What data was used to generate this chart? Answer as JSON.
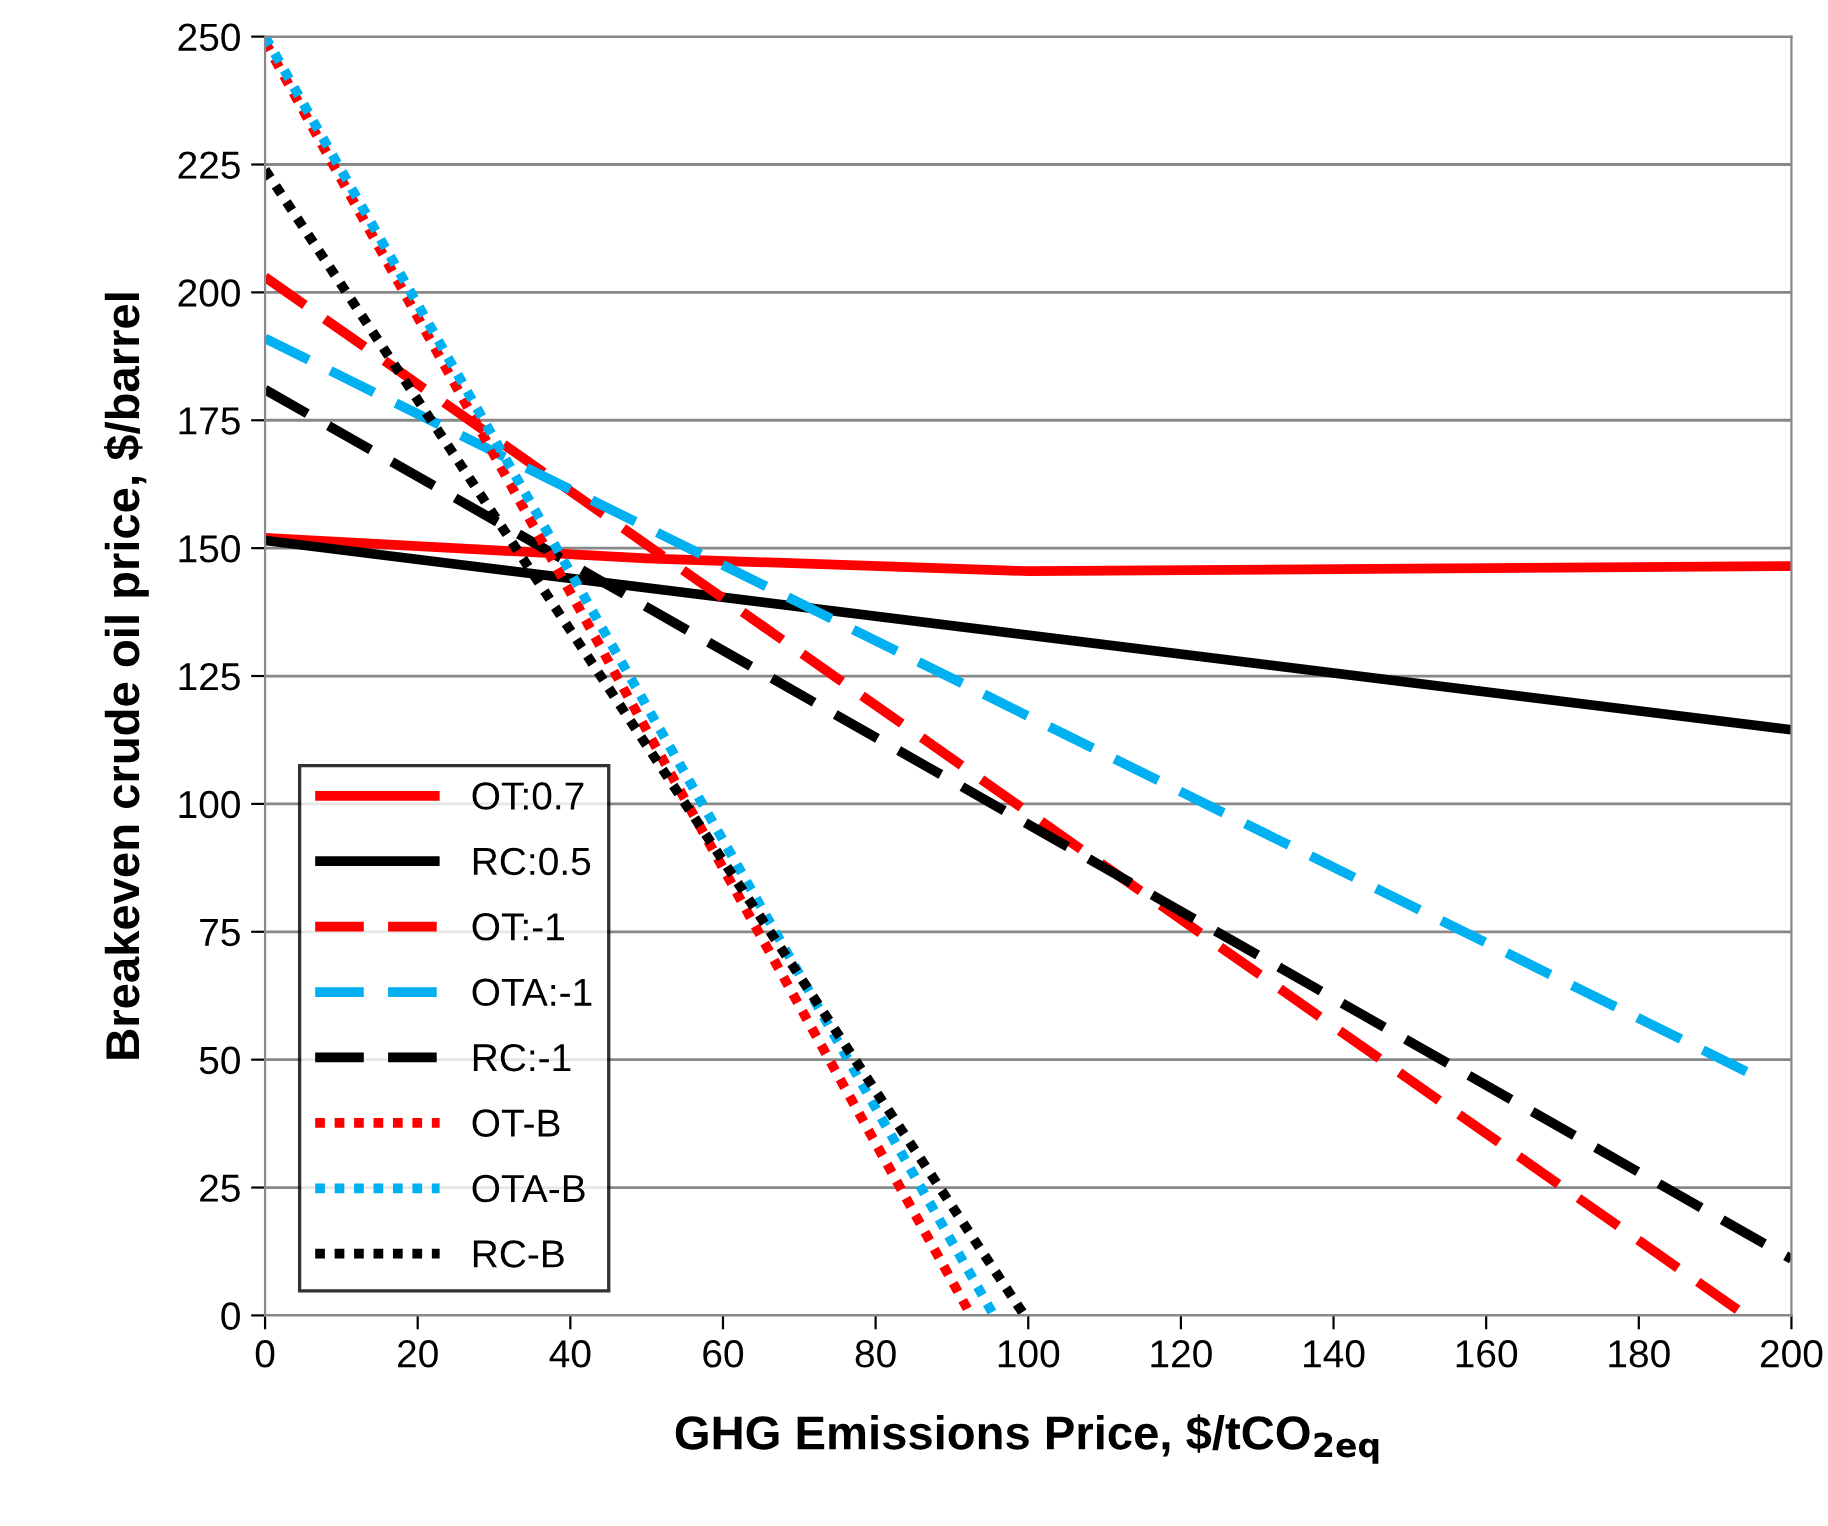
{
  "chart_data": {
    "type": "line",
    "xlabel": "GHG Emissions Price, $/tCO$_{2eq}$",
    "ylabel": "Breakeven crude oil price, $/barrel",
    "xlim": [
      0,
      200
    ],
    "xticks": [
      0,
      20,
      40,
      60,
      80,
      100,
      120,
      140,
      160,
      180,
      200
    ],
    "ylim": [
      0,
      250
    ],
    "yticks": [
      0,
      25,
      50,
      75,
      100,
      125,
      150,
      175,
      200,
      225,
      250
    ],
    "grid": "y",
    "legend": "bottom left",
    "series": [
      {
        "name": "OT:0.7",
        "color": "#ff0000",
        "line_style": "solid",
        "x": [
          0,
          50,
          100,
          150,
          200
        ],
        "values": [
          152,
          148,
          145.5,
          146,
          146.5
        ]
      },
      {
        "name": "RC:0.5",
        "color": "#000000",
        "line_style": "solid",
        "x": [
          0,
          200
        ],
        "values": [
          151.5,
          114.5
        ]
      },
      {
        "name": "OT:-1",
        "color": "#ff0000",
        "line_style": "dashed",
        "x": [
          0,
          194
        ],
        "values": [
          203,
          0
        ]
      },
      {
        "name": "OTA:-1",
        "color": "#00b0f0",
        "line_style": "dashed",
        "x": [
          0,
          195
        ],
        "values": [
          191,
          47
        ]
      },
      {
        "name": "RC:-1",
        "color": "#000000",
        "line_style": "dashed",
        "x": [
          0,
          200
        ],
        "values": [
          181,
          11
        ]
      },
      {
        "name": "OT-B",
        "color": "#ff0000",
        "line_style": "dotted",
        "x": [
          0,
          92.5
        ],
        "values": [
          249,
          0
        ]
      },
      {
        "name": "OTA-B",
        "color": "#00b0f0",
        "line_style": "dotted",
        "x": [
          0,
          95.5
        ],
        "values": [
          250,
          0
        ]
      },
      {
        "name": "RC-B",
        "color": "#000000",
        "line_style": "dotted",
        "x": [
          0,
          99.5
        ],
        "values": [
          224,
          0
        ]
      }
    ]
  }
}
